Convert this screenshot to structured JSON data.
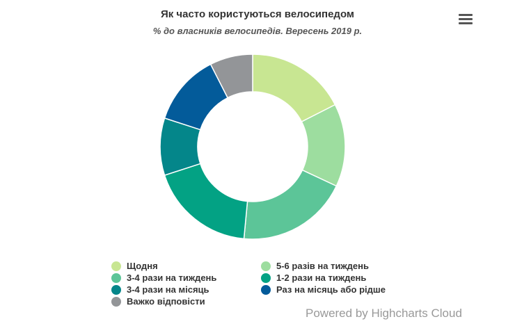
{
  "header": {
    "title": "Як часто користуються велосипедом",
    "subtitle": "% до власників велосипедів. Вересень 2019 р."
  },
  "menu": {
    "icon": "hamburger-menu-icon"
  },
  "chart_data": {
    "type": "pie",
    "donut": true,
    "title": "Як часто користуються велосипедом",
    "subtitle": "% до власників велосипедів. Вересень 2019 р.",
    "categories": [
      "Щодня",
      "5-6 разів на тиждень",
      "3-4 рази на тиждень",
      "1-2 рази на тиждень",
      "3-4 рази на місяць",
      "Раз на місяць або рідше",
      "Важко відповісти"
    ],
    "values": [
      17.5,
      14.5,
      19.5,
      18.5,
      10,
      12.5,
      7.5
    ],
    "colors": [
      "#c8e692",
      "#9ddd9f",
      "#5cc598",
      "#03a284",
      "#04868a",
      "#035b9a",
      "#939598"
    ],
    "legend_position": "bottom"
  },
  "credits": "Powered by Highcharts Cloud"
}
